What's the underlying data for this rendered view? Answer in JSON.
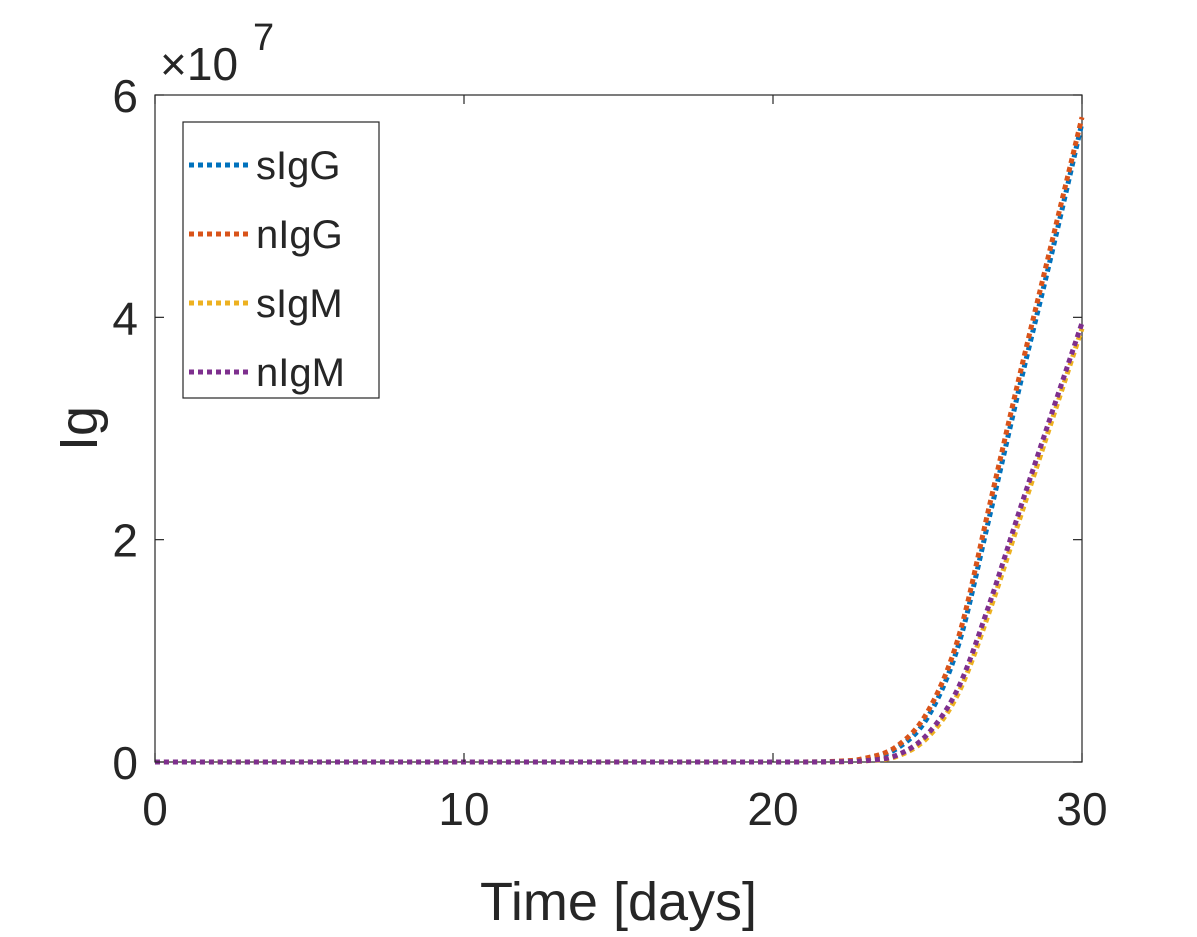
{
  "chart_data": {
    "type": "line",
    "title": "",
    "xlabel": "Time [days]",
    "ylabel": "Ig",
    "xlim": [
      0,
      30
    ],
    "ylim": [
      0,
      6
    ],
    "y_scale_note": "×10",
    "y_scale_exponent": "7",
    "x_ticks": [
      {
        "value": 0,
        "label": "0"
      },
      {
        "value": 10,
        "label": "10"
      },
      {
        "value": 20,
        "label": "20"
      },
      {
        "value": 30,
        "label": "30"
      }
    ],
    "y_ticks": [
      {
        "value": 0,
        "label": "0"
      },
      {
        "value": 2,
        "label": "2"
      },
      {
        "value": 4,
        "label": "4"
      },
      {
        "value": 6,
        "label": "6"
      }
    ],
    "grid": false,
    "legend_position": "top-left",
    "line_style": "dotted",
    "x": [
      0,
      10,
      20,
      22,
      23,
      24,
      25,
      26,
      27,
      28,
      29,
      30
    ],
    "series": [
      {
        "name": "sIgG",
        "color": "#0072BD",
        "values": [
          0,
          0,
          0,
          0.005,
          0.03,
          0.12,
          0.4,
          1.05,
          2.2,
          3.4,
          4.55,
          5.75
        ]
      },
      {
        "name": "nIgG",
        "color": "#D95319",
        "values": [
          0,
          0,
          0,
          0.006,
          0.035,
          0.14,
          0.45,
          1.12,
          2.3,
          3.5,
          4.65,
          5.8
        ]
      },
      {
        "name": "sIgM",
        "color": "#EDB120",
        "values": [
          0,
          0,
          0,
          0.001,
          0.01,
          0.05,
          0.22,
          0.62,
          1.35,
          2.2,
          3.05,
          3.9
        ]
      },
      {
        "name": "nIgM",
        "color": "#7E2F8E",
        "values": [
          0,
          0,
          0,
          0.002,
          0.012,
          0.06,
          0.25,
          0.67,
          1.42,
          2.28,
          3.12,
          3.95
        ]
      }
    ]
  }
}
